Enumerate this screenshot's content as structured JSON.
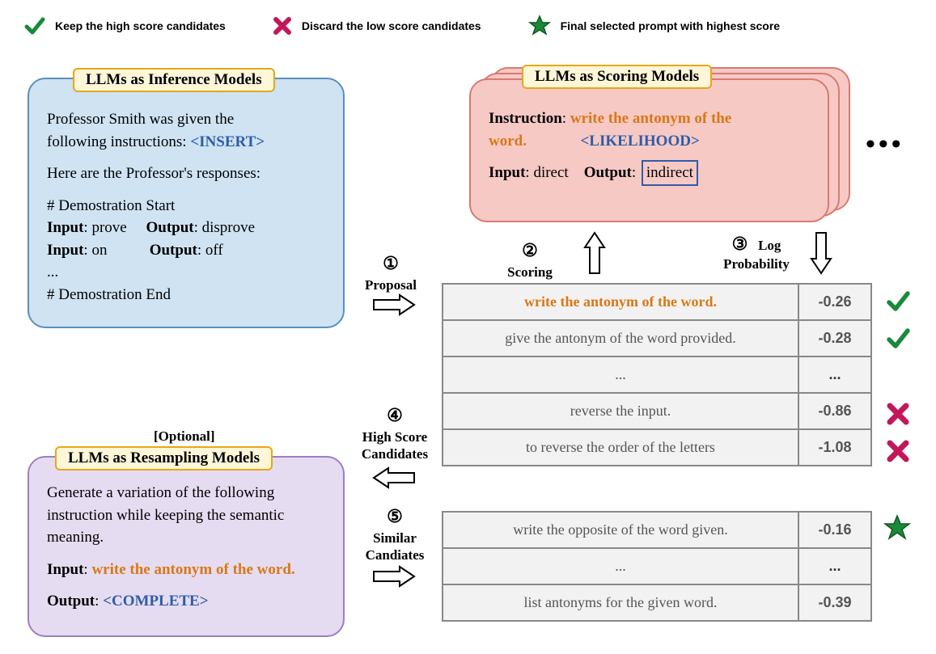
{
  "legend": {
    "keep": "Keep the high score candidates",
    "discard": "Discard the low score candidates",
    "final": "Final selected prompt with highest score"
  },
  "inference": {
    "title": "LLMs as Inference Models",
    "line1a": "Professor Smith was given the",
    "line1b": "following instructions: ",
    "insert": "<INSERT>",
    "line2": "Here are the Professor's responses:",
    "demo_start": "# Demostration Start",
    "r1_in_lbl": "Input",
    "r1_in": ": prove",
    "r1_out_lbl": "Output",
    "r1_out": ": disprove",
    "r2_in_lbl": "Input",
    "r2_in": ": on",
    "r2_out_lbl": "Output",
    "r2_out": ": off",
    "ellipsis": "...",
    "demo_end": "# Demostration End"
  },
  "scoring": {
    "title": "LLMs as Scoring Models",
    "instr_lbl": "Instruction",
    "instr_val": "write the antonym of the",
    "instr_val2": "word.",
    "likelihood": "<LIKELIHOOD>",
    "in_lbl": "Input",
    "in_val": ": direct",
    "out_lbl": "Output",
    "out_val": "indirect"
  },
  "resample": {
    "optional": "[Optional]",
    "title": "LLMs as Resampling Models",
    "body1": "Generate a variation of the following",
    "body2": "instruction while keeping the semantic",
    "body3": "meaning.",
    "in_lbl": "Input",
    "in_val": "write the antonym of the word.",
    "out_lbl": "Output",
    "out_val": "<COMPLETE>"
  },
  "steps": {
    "s1n": "①",
    "s1": "Proposal",
    "s2n": "②",
    "s2": "Scoring",
    "s3n": "③",
    "s3a": "Log",
    "s3b": "Probability",
    "s4n": "④",
    "s4a": "High Score",
    "s4b": "Candidates",
    "s5n": "⑤",
    "s5a": "Similar",
    "s5b": "Candiates"
  },
  "table1": {
    "rows": [
      {
        "text": "write the antonym of the word.",
        "score": "-0.26",
        "cls": "green",
        "orange": true
      },
      {
        "text": "give the antonym of the word provided.",
        "score": "-0.28",
        "cls": "green"
      },
      {
        "text": "...",
        "score": "...",
        "cls": ""
      },
      {
        "text": "reverse the input.",
        "score": "-0.86",
        "cls": "red"
      },
      {
        "text": "to reverse the order of the letters",
        "score": "-1.08",
        "cls": "red"
      }
    ]
  },
  "table2": {
    "rows": [
      {
        "text": "write the opposite of the word given.",
        "score": "-0.16",
        "cls": "green"
      },
      {
        "text": "...",
        "score": "...",
        "cls": ""
      },
      {
        "text": "list antonyms for the given word.",
        "score": "-0.39",
        "cls": "red"
      }
    ]
  },
  "colors": {
    "check": "#1a8a3a",
    "cross": "#c2185b",
    "star": "#1a8a3a",
    "star_stroke": "#0f5a22"
  }
}
